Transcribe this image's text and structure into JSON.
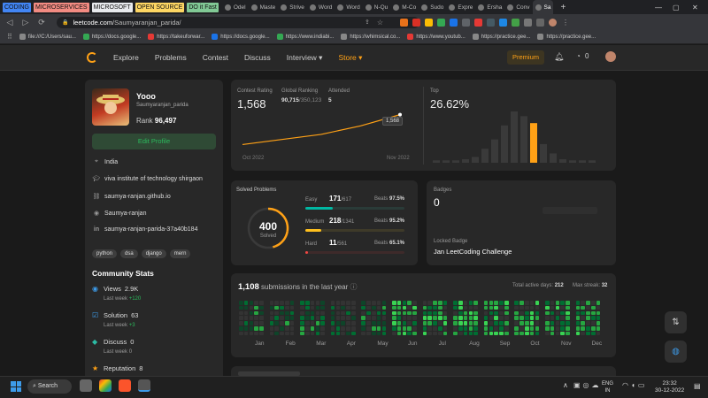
{
  "tabs": {
    "groups": [
      {
        "label": "CODING",
        "color": "#4285f4"
      },
      {
        "label": "MICROSERVICES",
        "color": "#f28b82"
      },
      {
        "label": "MICROSOFT",
        "color": "#e8eaed"
      },
      {
        "label": "OPEN SOURCE",
        "color": "#fdd663"
      },
      {
        "label": "DO it Fast",
        "color": "#81c995"
      }
    ],
    "items": [
      {
        "label": "Odel"
      },
      {
        "label": "Maste"
      },
      {
        "label": "Strive"
      },
      {
        "label": "Word"
      },
      {
        "label": "Word"
      },
      {
        "label": "N-Qu"
      },
      {
        "label": "M-Co"
      },
      {
        "label": "Sudo"
      },
      {
        "label": "Expre"
      },
      {
        "label": "Ersha"
      },
      {
        "label": "Conv"
      },
      {
        "label": "Sa"
      }
    ],
    "new_tab": "+"
  },
  "address": {
    "domain": "leetcode.com",
    "path": "/Saumyaranjan_parida/"
  },
  "bookmarks": [
    {
      "label": "file:///C:/Users/sau..."
    },
    {
      "label": "https://docs.google..."
    },
    {
      "label": "https://takeuforwar..."
    },
    {
      "label": "https://docs.google..."
    },
    {
      "label": "https://www.indiabi..."
    },
    {
      "label": "https://whimsical.co..."
    },
    {
      "label": "https://www.youtub..."
    },
    {
      "label": "https://practice.gee..."
    },
    {
      "label": "https://practice.gee..."
    }
  ],
  "nav": {
    "links": [
      "Explore",
      "Problems",
      "Contest",
      "Discuss"
    ],
    "interview": "Interview ▾",
    "store": "Store ▾",
    "premium": "Premium",
    "coins": "0"
  },
  "profile": {
    "name": "Yooo",
    "username": "Saumyaranjan_parida",
    "rank_label": "Rank",
    "rank": "96,497",
    "edit": "Edit Profile",
    "location": "India",
    "school": "viva institute of technology shirgaon",
    "website": "saumya-ranjan.github.io",
    "github": "Saumya-ranjan",
    "linkedin": "saumya-ranjan-parida-37a40b184",
    "skills": [
      "python",
      "dsa",
      "django",
      "mern"
    ]
  },
  "community": {
    "title": "Community Stats",
    "views_label": "Views",
    "views": "2.9K",
    "views_week_label": "Last week",
    "views_week": "+120",
    "solution_label": "Solution",
    "solution": "63",
    "solution_week_label": "Last week",
    "solution_week": "+3",
    "discuss_label": "Discuss",
    "discuss": "0",
    "discuss_week_label": "Last week",
    "discuss_week": "0",
    "reputation_label": "Reputation",
    "reputation": "8"
  },
  "contest": {
    "rating_label": "Contest Rating",
    "rating": "1,568",
    "global_label": "Global Ranking",
    "global": "90,715",
    "global_total": "/350,123",
    "attended_label": "Attended",
    "attended": "5",
    "chart_tip": "1,568",
    "x_start": "Oct 2022",
    "x_end": "Nov 2022",
    "top_label": "Top",
    "top": "26.62%"
  },
  "chart_data": [
    {
      "type": "line",
      "x": [
        "Oct 2022",
        "",
        "",
        "",
        "Nov 2022"
      ],
      "values": [
        1480,
        1495,
        1510,
        1535,
        1568
      ],
      "ylim": [
        1450,
        1580
      ],
      "color": "#ffa116"
    },
    {
      "type": "bar",
      "values": [
        2,
        2,
        2,
        3,
        5,
        12,
        20,
        32,
        44,
        40,
        34,
        16,
        8,
        3,
        2,
        2,
        2
      ],
      "highlight_index": 10,
      "color": "#3a3a3a",
      "highlight_color": "#ffa116"
    }
  ],
  "solved": {
    "title": "Solved Problems",
    "total": "400",
    "total_label": "Solved",
    "easy_label": "Easy",
    "easy": "171",
    "easy_total": "/617",
    "easy_beats_label": "Beats",
    "easy_beats": "97.5%",
    "medium_label": "Medium",
    "medium": "218",
    "medium_total": "/1341",
    "medium_beats_label": "Beats",
    "medium_beats": "95.2%",
    "hard_label": "Hard",
    "hard": "11",
    "hard_total": "/561",
    "hard_beats_label": "Beats",
    "hard_beats": "65.1%",
    "easy_frac": 0.277,
    "medium_frac": 0.163,
    "hard_frac": 0.02,
    "easy_color": "#00b8a3",
    "medium_color": "#ffc01e",
    "hard_color": "#ef4743"
  },
  "badges": {
    "title": "Badges",
    "count": "0",
    "locked_label": "Locked Badge",
    "locked_name": "Jan LeetCoding Challenge"
  },
  "submissions": {
    "count": "1,108",
    "label": "submissions in the last year",
    "active_label": "Total active days:",
    "active": "212",
    "streak_label": "Max streak:",
    "streak": "32",
    "months": [
      "Jan",
      "Feb",
      "Mar",
      "Apr",
      "May",
      "Jun",
      "Jul",
      "Aug",
      "Sep",
      "Oct",
      "Nov",
      "Dec"
    ]
  },
  "taskbar": {
    "search": "Search",
    "lang1": "ENG",
    "lang2": "IN",
    "time": "23:32",
    "date": "30-12-2022"
  }
}
